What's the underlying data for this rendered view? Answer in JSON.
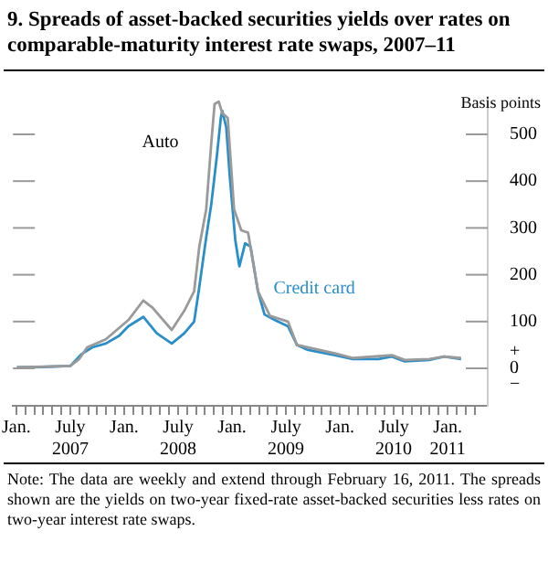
{
  "chart_data": {
    "type": "line",
    "title": "9. Spreads of asset-backed securities yields over rates on comparable-maturity interest rate swaps, 2007–11",
    "ylabel": "Basis points",
    "annotations": [
      "Note: The data are weekly and extend through February 16, 2011. The spreads shown are the yields on two-year fixed-rate asset-backed securities less rates on two-year interest rate swaps."
    ],
    "series": [
      {
        "name": "Auto",
        "color": "#9a9a9a",
        "x": [
          "2007-01-03",
          "2007-07-01",
          "2007-08-01",
          "2007-08-28",
          "2007-10-30",
          "2008-01-15",
          "2008-03-05",
          "2008-04-05",
          "2008-06-10",
          "2008-07-22",
          "2008-08-25",
          "2008-09-12",
          "2008-10-05",
          "2008-10-22",
          "2008-11-03",
          "2008-11-17",
          "2008-11-29",
          "2008-12-17",
          "2009-01-08",
          "2009-02-02",
          "2009-02-25",
          "2009-03-28",
          "2009-05-08",
          "2009-07-08",
          "2009-08-08",
          "2009-09-12",
          "2009-12-15",
          "2010-02-15",
          "2010-06-25",
          "2010-08-08",
          "2010-10-30",
          "2010-12-20",
          "2011-02-16"
        ],
        "values": [
          2,
          5,
          20,
          45,
          62,
          103,
          145,
          130,
          82,
          123,
          165,
          260,
          340,
          480,
          565,
          570,
          545,
          535,
          340,
          295,
          290,
          165,
          112,
          100,
          50,
          45,
          32,
          22,
          28,
          18,
          20,
          25,
          22
        ]
      },
      {
        "name": "Credit card",
        "color": "#2a8ec8",
        "x": [
          "2007-01-03",
          "2007-04-01",
          "2007-07-01",
          "2007-08-08",
          "2007-09-15",
          "2007-10-30",
          "2007-12-15",
          "2008-01-15",
          "2008-03-05",
          "2008-04-20",
          "2008-06-10",
          "2008-07-22",
          "2008-08-25",
          "2008-09-10",
          "2008-10-05",
          "2008-10-22",
          "2008-11-10",
          "2008-11-24",
          "2008-11-29",
          "2008-12-12",
          "2008-12-24",
          "2009-01-12",
          "2009-01-26",
          "2009-02-15",
          "2009-03-03",
          "2009-03-28",
          "2009-04-20",
          "2009-05-25",
          "2009-07-08",
          "2009-08-08",
          "2009-09-12",
          "2009-12-15",
          "2010-02-15",
          "2010-05-10",
          "2010-06-25",
          "2010-08-08",
          "2010-10-30",
          "2010-12-20",
          "2011-02-16"
        ],
        "values": [
          2,
          3,
          5,
          30,
          45,
          53,
          70,
          90,
          110,
          75,
          53,
          75,
          100,
          165,
          280,
          350,
          450,
          535,
          550,
          515,
          410,
          275,
          218,
          267,
          260,
          165,
          115,
          103,
          90,
          50,
          40,
          28,
          20,
          20,
          25,
          15,
          18,
          25,
          20
        ]
      }
    ],
    "xlim": [
      "2006-12-20",
      "2011-05-15"
    ],
    "xticks": [
      {
        "value": "2007-01-01",
        "label": "Jan."
      },
      {
        "value": "2007-02-01",
        "label": null
      },
      {
        "value": "2007-03-01",
        "label": null
      },
      {
        "value": "2007-04-01",
        "label": null
      },
      {
        "value": "2007-05-01",
        "label": null
      },
      {
        "value": "2007-06-01",
        "label": null
      },
      {
        "value": "2007-07-01",
        "label": "July\n2007"
      },
      {
        "value": "2007-08-01",
        "label": null
      },
      {
        "value": "2007-09-01",
        "label": null
      },
      {
        "value": "2007-10-01",
        "label": null
      },
      {
        "value": "2007-11-01",
        "label": null
      },
      {
        "value": "2007-12-01",
        "label": null
      },
      {
        "value": "2008-01-01",
        "label": "Jan."
      },
      {
        "value": "2008-02-01",
        "label": null
      },
      {
        "value": "2008-03-01",
        "label": null
      },
      {
        "value": "2008-04-01",
        "label": null
      },
      {
        "value": "2008-05-01",
        "label": null
      },
      {
        "value": "2008-06-01",
        "label": null
      },
      {
        "value": "2008-07-01",
        "label": "July\n2008"
      },
      {
        "value": "2008-08-01",
        "label": null
      },
      {
        "value": "2008-09-01",
        "label": null
      },
      {
        "value": "2008-10-01",
        "label": null
      },
      {
        "value": "2008-11-01",
        "label": null
      },
      {
        "value": "2008-12-01",
        "label": null
      },
      {
        "value": "2009-01-01",
        "label": "Jan."
      },
      {
        "value": "2009-02-01",
        "label": null
      },
      {
        "value": "2009-03-01",
        "label": null
      },
      {
        "value": "2009-04-01",
        "label": null
      },
      {
        "value": "2009-05-01",
        "label": null
      },
      {
        "value": "2009-06-01",
        "label": null
      },
      {
        "value": "2009-07-01",
        "label": "July\n2009"
      },
      {
        "value": "2009-08-01",
        "label": null
      },
      {
        "value": "2009-09-01",
        "label": null
      },
      {
        "value": "2009-10-01",
        "label": null
      },
      {
        "value": "2009-11-01",
        "label": null
      },
      {
        "value": "2009-12-01",
        "label": null
      },
      {
        "value": "2010-01-01",
        "label": "Jan."
      },
      {
        "value": "2010-02-01",
        "label": null
      },
      {
        "value": "2010-03-01",
        "label": null
      },
      {
        "value": "2010-04-01",
        "label": null
      },
      {
        "value": "2010-05-01",
        "label": null
      },
      {
        "value": "2010-06-01",
        "label": null
      },
      {
        "value": "2010-07-01",
        "label": "July\n2010"
      },
      {
        "value": "2010-08-01",
        "label": null
      },
      {
        "value": "2010-09-01",
        "label": null
      },
      {
        "value": "2010-10-01",
        "label": null
      },
      {
        "value": "2010-11-01",
        "label": null
      },
      {
        "value": "2010-12-01",
        "label": null
      },
      {
        "value": "2011-01-01",
        "label": "Jan.\n2011"
      },
      {
        "value": "2011-02-01",
        "label": null
      },
      {
        "value": "2011-03-01",
        "label": null
      },
      {
        "value": "2011-04-01",
        "label": null
      }
    ],
    "ylim": [
      -80,
      580
    ],
    "yticks": [
      {
        "value": 0,
        "label": "+\n0\n−"
      },
      100,
      200,
      300,
      400,
      500
    ],
    "grid": false,
    "legend": false,
    "marker": "none",
    "line_style": "solid"
  }
}
